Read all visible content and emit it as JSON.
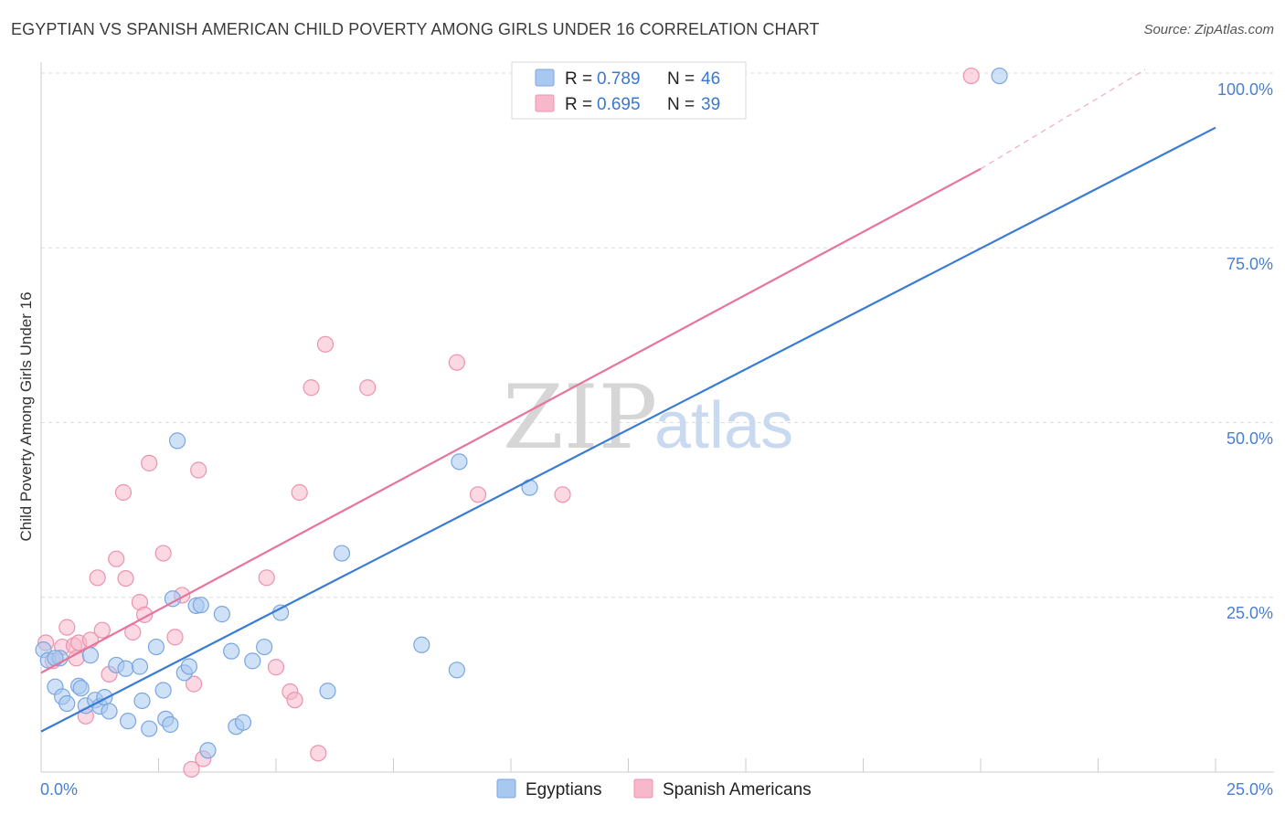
{
  "header": {
    "title": "EGYPTIAN VS SPANISH AMERICAN CHILD POVERTY AMONG GIRLS UNDER 16 CORRELATION CHART",
    "source": "Source: ZipAtlas.com"
  },
  "watermark": {
    "part1": "ZIP",
    "part2": "atlas"
  },
  "legend": {
    "rows": [
      {
        "r_label": "R =",
        "r_value": "0.789",
        "n_label": "N =",
        "n_value": "46",
        "color": "#a8c8f0"
      },
      {
        "r_label": "R =",
        "r_value": "0.695",
        "n_label": "N =",
        "n_value": "39",
        "color": "#f7b8cb"
      }
    ]
  },
  "bottom_legend": [
    {
      "label": "Egyptians",
      "color": "#a8c8f0"
    },
    {
      "label": "Spanish Americans",
      "color": "#f7b8cb"
    }
  ],
  "chart_data": {
    "type": "scatter",
    "title": "EGYPTIAN VS SPANISH AMERICAN CHILD POVERTY AMONG GIRLS UNDER 16 CORRELATION CHART",
    "xlabel": "",
    "ylabel": "Child Poverty Among Girls Under 16",
    "xlim": [
      0,
      25
    ],
    "ylim": [
      0,
      100
    ],
    "x_tick_labels": [
      "0.0%",
      "25.0%"
    ],
    "y_tick_labels": [
      "25.0%",
      "50.0%",
      "75.0%",
      "100.0%"
    ],
    "y_ticks": [
      25,
      50,
      75,
      100
    ],
    "grid": true,
    "legend_position": "top-center",
    "colors": {
      "egyptians": "#3a7bd5",
      "spanish": "#e8739b",
      "egyptians_fill": "#a8c8f0",
      "spanish_fill": "#f7b8cb"
    },
    "series": [
      {
        "name": "Egyptians",
        "r": 0.789,
        "n": 46,
        "trend": {
          "x0": 0,
          "y0": 5.8,
          "x1": 25,
          "y1": 92.2
        },
        "points": [
          [
            0.05,
            17.5
          ],
          [
            0.15,
            16.0
          ],
          [
            0.3,
            12.2
          ],
          [
            0.4,
            16.3
          ],
          [
            0.45,
            10.8
          ],
          [
            0.55,
            9.8
          ],
          [
            0.8,
            12.3
          ],
          [
            0.85,
            12.0
          ],
          [
            0.95,
            9.5
          ],
          [
            1.05,
            16.7
          ],
          [
            1.15,
            10.3
          ],
          [
            1.25,
            9.4
          ],
          [
            1.35,
            10.7
          ],
          [
            1.45,
            8.7
          ],
          [
            1.6,
            15.3
          ],
          [
            1.8,
            14.8
          ],
          [
            1.85,
            7.3
          ],
          [
            2.1,
            15.1
          ],
          [
            2.15,
            10.2
          ],
          [
            2.3,
            6.2
          ],
          [
            2.45,
            17.9
          ],
          [
            2.6,
            11.7
          ],
          [
            2.65,
            7.6
          ],
          [
            2.75,
            6.8
          ],
          [
            2.8,
            24.8
          ],
          [
            2.9,
            47.4
          ],
          [
            3.05,
            14.2
          ],
          [
            3.15,
            15.1
          ],
          [
            3.3,
            23.8
          ],
          [
            3.4,
            23.9
          ],
          [
            3.55,
            3.1
          ],
          [
            3.85,
            22.6
          ],
          [
            4.05,
            17.3
          ],
          [
            4.15,
            6.5
          ],
          [
            4.3,
            7.1
          ],
          [
            4.5,
            15.9
          ],
          [
            4.75,
            17.9
          ],
          [
            5.1,
            22.8
          ],
          [
            6.1,
            11.6
          ],
          [
            6.4,
            31.3
          ],
          [
            8.1,
            18.2
          ],
          [
            8.85,
            14.6
          ],
          [
            8.9,
            44.4
          ],
          [
            10.4,
            40.7
          ],
          [
            20.4,
            99.6
          ],
          [
            0.3,
            16.3
          ]
        ]
      },
      {
        "name": "Spanish Americans",
        "r": 0.695,
        "n": 39,
        "trend": {
          "x0": 0,
          "y0": 14.2,
          "x1": 20.0,
          "y1": 86.3,
          "dash_x1": 23.5,
          "dash_y1": 100.5
        },
        "points": [
          [
            0.1,
            18.5
          ],
          [
            0.25,
            15.9
          ],
          [
            0.45,
            17.9
          ],
          [
            0.55,
            20.7
          ],
          [
            0.7,
            18.1
          ],
          [
            0.75,
            16.3
          ],
          [
            0.8,
            18.5
          ],
          [
            0.95,
            8.0
          ],
          [
            1.05,
            18.9
          ],
          [
            1.2,
            27.8
          ],
          [
            1.3,
            20.3
          ],
          [
            1.45,
            14.0
          ],
          [
            1.6,
            30.5
          ],
          [
            1.75,
            40.0
          ],
          [
            1.8,
            27.7
          ],
          [
            1.95,
            20.0
          ],
          [
            2.1,
            24.3
          ],
          [
            2.2,
            22.5
          ],
          [
            2.3,
            44.2
          ],
          [
            2.6,
            31.3
          ],
          [
            2.85,
            19.3
          ],
          [
            3.0,
            25.3
          ],
          [
            3.2,
            0.4
          ],
          [
            3.25,
            12.6
          ],
          [
            3.35,
            43.2
          ],
          [
            3.45,
            1.9
          ],
          [
            4.8,
            27.8
          ],
          [
            5.0,
            15.0
          ],
          [
            5.3,
            11.5
          ],
          [
            5.4,
            10.3
          ],
          [
            5.5,
            40.0
          ],
          [
            5.75,
            55.0
          ],
          [
            5.9,
            2.7
          ],
          [
            6.05,
            61.2
          ],
          [
            6.95,
            55.0
          ],
          [
            8.85,
            58.6
          ],
          [
            9.3,
            39.7
          ],
          [
            11.1,
            39.7
          ],
          [
            19.8,
            99.6
          ]
        ]
      }
    ]
  }
}
